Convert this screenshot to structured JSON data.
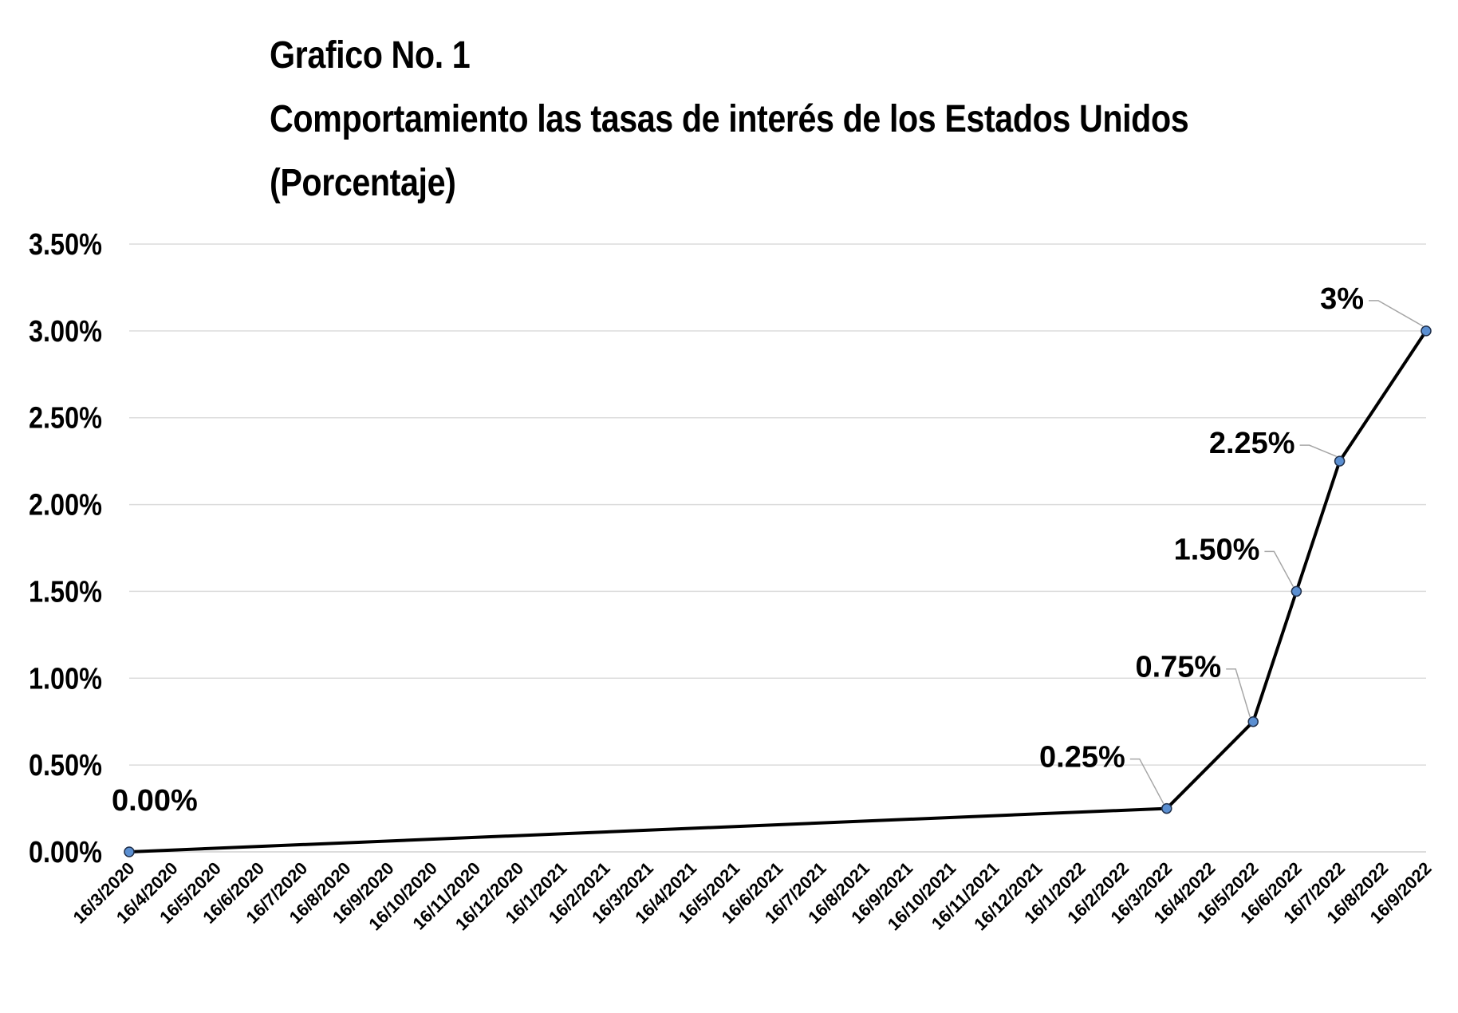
{
  "title": {
    "line1": "Grafico No. 1",
    "line2": "Comportamiento las tasas de interés de los Estados Unidos",
    "line3": "(Porcentaje)"
  },
  "chart_data": {
    "type": "line",
    "title": "Grafico No. 1 Comportamiento las tasas de interés de los Estados Unidos (Porcentaje)",
    "xlabel": "",
    "ylabel": "",
    "ylim": [
      0,
      3.5
    ],
    "y_ticks": [
      "0.00%",
      "0.50%",
      "1.00%",
      "1.50%",
      "2.00%",
      "2.50%",
      "3.00%",
      "3.50%"
    ],
    "x_ticks": [
      "16/3/2020",
      "16/4/2020",
      "16/5/2020",
      "16/6/2020",
      "16/7/2020",
      "16/8/2020",
      "16/9/2020",
      "16/10/2020",
      "16/11/2020",
      "16/12/2020",
      "16/1/2021",
      "16/2/2021",
      "16/3/2021",
      "16/4/2021",
      "16/5/2021",
      "16/6/2021",
      "16/7/2021",
      "16/8/2021",
      "16/9/2021",
      "16/10/2021",
      "16/11/2021",
      "16/12/2021",
      "16/1/2022",
      "16/2/2022",
      "16/3/2022",
      "16/4/2022",
      "16/5/2022",
      "16/6/2022",
      "16/7/2022",
      "16/8/2022",
      "16/9/2022"
    ],
    "grid": true,
    "legend": "none",
    "line_color": "#000000",
    "marker_color": "#5b8fd1",
    "series": [
      {
        "points": [
          {
            "x": "16/3/2020",
            "y": 0.0,
            "label": "0.00%"
          },
          {
            "x": "16/3/2022",
            "y": 0.25,
            "label": "0.25%"
          },
          {
            "x": "16/5/2022",
            "y": 0.75,
            "label": "0.75%"
          },
          {
            "x": "16/6/2022",
            "y": 1.5,
            "label": "1.50%"
          },
          {
            "x": "16/7/2022",
            "y": 2.25,
            "label": "2.25%"
          },
          {
            "x": "16/9/2022",
            "y": 3.0,
            "label": "3%"
          }
        ]
      }
    ]
  }
}
